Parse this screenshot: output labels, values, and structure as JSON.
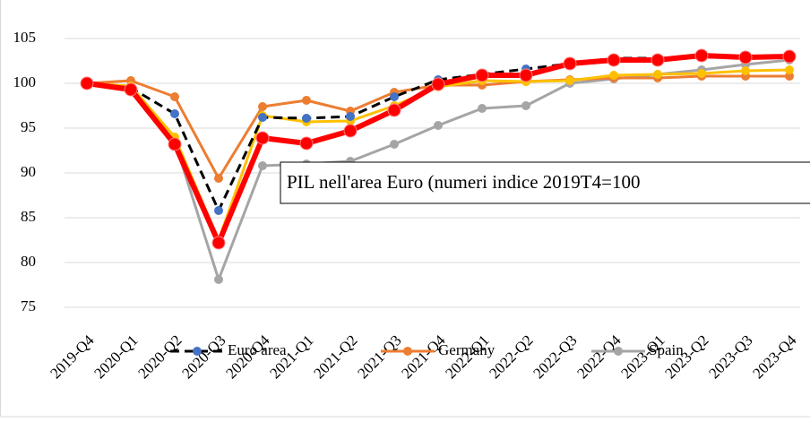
{
  "chart_data": {
    "type": "line",
    "annotation": "PIL nell'area Euro (numeri indice 2019T4=100",
    "categories": [
      "2019-Q4",
      "2020-Q1",
      "2020-Q2",
      "2020-Q3",
      "2020-Q4",
      "2021-Q1",
      "2021-Q2",
      "2021-Q3",
      "2021-Q4",
      "2022-Q1",
      "2022-Q2",
      "2022-Q3",
      "2022-Q4",
      "2023-Q1",
      "2023-Q2",
      "2023-Q3",
      "2023-Q4"
    ],
    "series": [
      {
        "name": "Spain",
        "color": "#a5a5a5",
        "marker_color": "#a5a5a5",
        "width": 3,
        "values": [
          100,
          99.4,
          93.5,
          78.1,
          90.8,
          91.0,
          91.3,
          93.2,
          95.3,
          97.2,
          97.5,
          100.0,
          100.5,
          101.0,
          101.5,
          102.1,
          102.6
        ]
      },
      {
        "name": "Germany",
        "color": "#ed7d31",
        "marker_color": "#ed7d31",
        "width": 3,
        "values": [
          100,
          100.3,
          98.5,
          89.4,
          97.4,
          98.1,
          96.9,
          99.0,
          99.8,
          99.8,
          100.2,
          100.4,
          100.6,
          100.6,
          100.8,
          100.8,
          100.8
        ]
      },
      {
        "color": "#ffc000",
        "marker_color": "#ffc000",
        "width": 3,
        "values": [
          100,
          99.7,
          94.0,
          82.5,
          96.4,
          95.7,
          95.8,
          97.5,
          99.6,
          100.3,
          100.2,
          100.3,
          100.9,
          101.0,
          101.1,
          101.4,
          101.5
        ]
      },
      {
        "name": "Euro area",
        "color": "#000000",
        "marker_color": "#4472c4",
        "width": 3,
        "dash": true,
        "values": [
          100,
          99.5,
          96.6,
          85.8,
          96.2,
          96.1,
          96.3,
          98.5,
          100.4,
          101.0,
          101.6,
          102.2,
          102.8,
          102.8,
          102.9,
          102.9,
          103.0
        ]
      },
      {
        "color": "#ff0000",
        "marker_color": "#ff0000",
        "width": 6,
        "values": [
          100,
          99.3,
          93.2,
          82.2,
          93.9,
          93.3,
          94.7,
          97.0,
          99.9,
          100.9,
          100.9,
          102.2,
          102.6,
          102.6,
          103.1,
          102.9,
          103.0
        ]
      }
    ],
    "ylim": [
      70,
      108
    ],
    "yticks": [
      75,
      80,
      85,
      90,
      95,
      100,
      105
    ],
    "grid": true
  }
}
